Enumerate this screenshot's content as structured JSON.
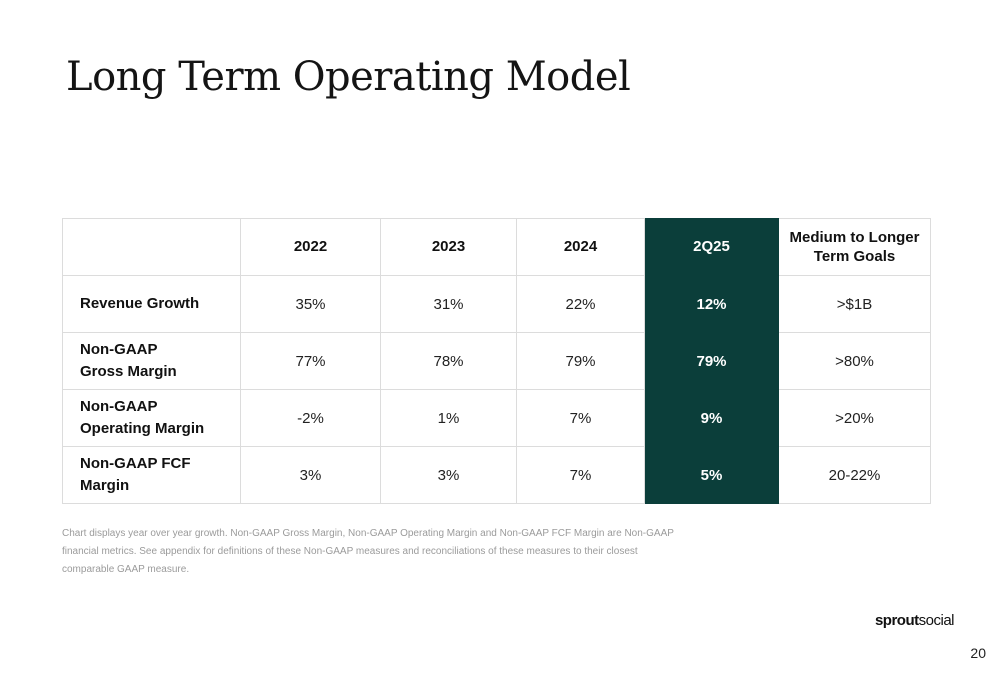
{
  "slide": {
    "title": "Long Term Operating Model",
    "page_number": "20"
  },
  "table": {
    "columns": [
      "",
      "2022",
      "2023",
      "2024",
      "2Q25",
      "Medium to Longer Term Goals"
    ],
    "rows": [
      {
        "label": [
          "Revenue Growth"
        ],
        "values": [
          "35%",
          "31%",
          "22%",
          "12%",
          ">$1B"
        ]
      },
      {
        "label": [
          "Non-GAAP",
          "Gross Margin"
        ],
        "values": [
          "77%",
          "78%",
          "79%",
          "79%",
          ">80%"
        ]
      },
      {
        "label": [
          "Non-GAAP",
          "Operating Margin"
        ],
        "values": [
          "-2%",
          "1%",
          "7%",
          "9%",
          ">20%"
        ]
      },
      {
        "label": [
          "Non-GAAP FCF",
          "Margin"
        ],
        "values": [
          "3%",
          "3%",
          "7%",
          "5%",
          "20-22%"
        ]
      }
    ]
  },
  "footnote": "Chart displays year over year growth. Non-GAAP Gross Margin, Non-GAAP Operating Margin and Non-GAAP FCF Margin are Non-GAAP financial metrics. See appendix for definitions of these Non-GAAP measures and reconciliations of these measures to their closest comparable GAAP measure.",
  "brand": {
    "part1": "sprout",
    "part2": "social"
  },
  "colors": {
    "highlight_column": "#0b3e3a",
    "highlight_text": "#ffffff"
  }
}
